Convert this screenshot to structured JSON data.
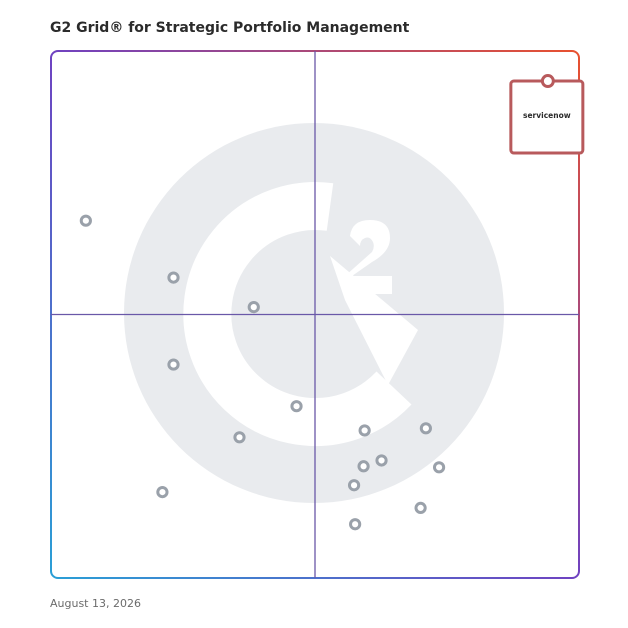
{
  "title": "G2 Grid® for Strategic Portfolio Management",
  "date": "August 13, 2026",
  "colors": {
    "quadrant_lines": "#6a58a8",
    "point": "#9aa1aa",
    "highlight": "#b85a5c",
    "watermark": "#e9ebee",
    "border_gradient": [
      "#2a9fd6",
      "#6f42c1",
      "#e8512f"
    ]
  },
  "chart_data": {
    "type": "scatter",
    "title": "G2 Grid® for Strategic Portfolio Management",
    "xlabel": "",
    "ylabel": "",
    "xlim": [
      0,
      100
    ],
    "ylim": [
      0,
      100
    ],
    "quadrant_split": {
      "x": 50,
      "y": 50
    },
    "grid": true,
    "points": [
      {
        "x": 6.6,
        "y": 67.8
      },
      {
        "x": 23.2,
        "y": 57.0
      },
      {
        "x": 38.4,
        "y": 51.4
      },
      {
        "x": 23.2,
        "y": 40.5
      },
      {
        "x": 46.5,
        "y": 32.6
      },
      {
        "x": 35.7,
        "y": 26.7
      },
      {
        "x": 21.1,
        "y": 16.3
      },
      {
        "x": 71.0,
        "y": 28.4
      },
      {
        "x": 59.4,
        "y": 28.0
      },
      {
        "x": 62.6,
        "y": 22.3
      },
      {
        "x": 59.2,
        "y": 21.2
      },
      {
        "x": 73.5,
        "y": 21.0
      },
      {
        "x": 57.4,
        "y": 17.6
      },
      {
        "x": 70.0,
        "y": 13.3
      },
      {
        "x": 57.6,
        "y": 10.2
      }
    ],
    "highlight": {
      "label": "servicenow",
      "x": 94.1,
      "y": 94.3
    }
  }
}
